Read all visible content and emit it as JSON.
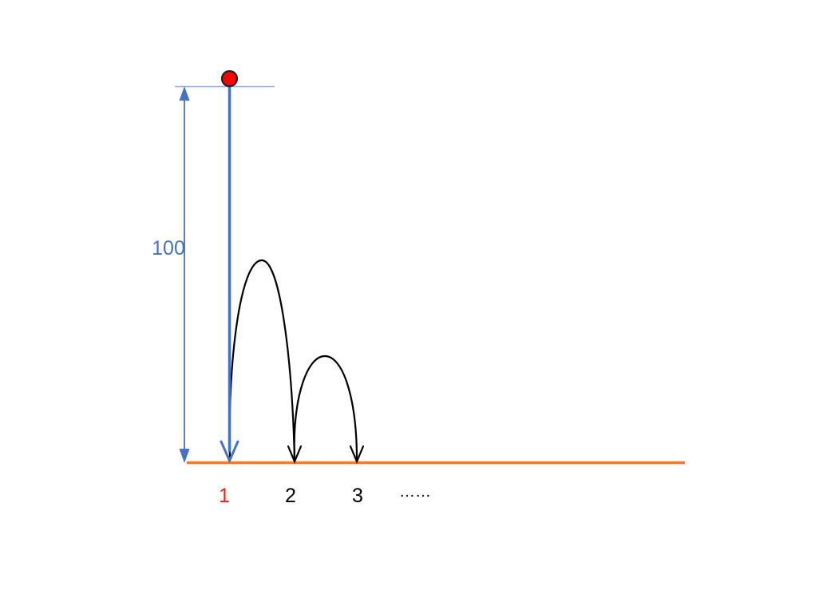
{
  "diagram": {
    "height_label": "100",
    "bounce_labels": [
      "1",
      "2",
      "3"
    ],
    "ellipsis": "……",
    "colors": {
      "ground": "#ED7D31",
      "drop": "#4472C4",
      "dimension": "#4472C4",
      "ball": "#FF0000",
      "bounce_arcs": "#000000",
      "first_label": "#E8231A",
      "labels": "#000000"
    },
    "icons": {
      "ball": "ball-icon"
    }
  }
}
